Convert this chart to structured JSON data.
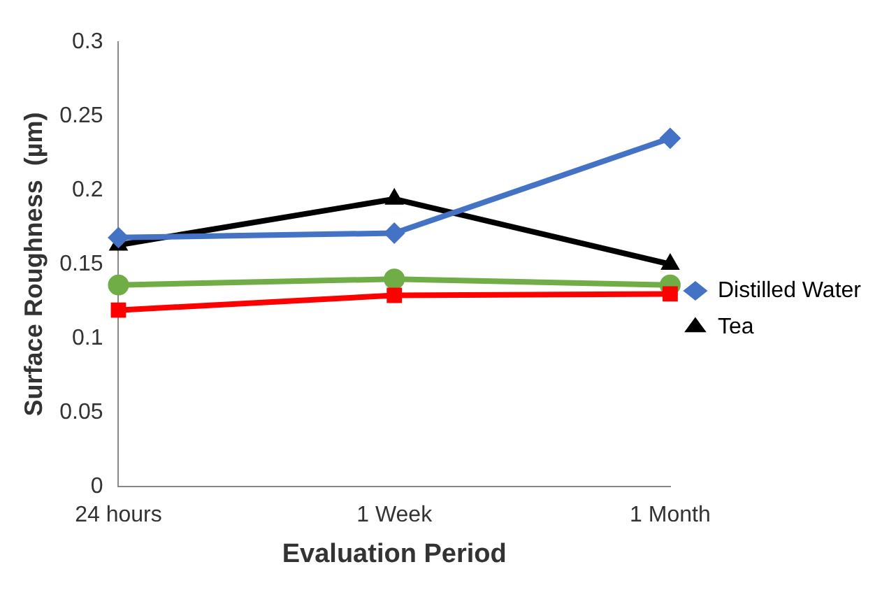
{
  "chart_data": {
    "type": "line",
    "xlabel": "Evaluation Period",
    "ylabel": "Surface Roughness  (µm)",
    "categories": [
      "24 hours",
      "1 Week",
      "1 Month"
    ],
    "series": [
      {
        "name": "Distilled Water",
        "color": "#4472c4",
        "marker": "diamond",
        "values": [
          0.168,
          0.171,
          0.235
        ]
      },
      {
        "color": "#ff0000",
        "marker": "square",
        "values": [
          0.119,
          0.129,
          0.13
        ]
      },
      {
        "name": "Tea",
        "color": "#000000",
        "marker": "triangle",
        "values": [
          0.163,
          0.194,
          0.15
        ]
      },
      {
        "color": "#70ad47",
        "marker": "circle",
        "values": [
          0.136,
          0.14,
          0.136
        ]
      }
    ],
    "ylim": [
      0,
      0.3
    ],
    "yticks": [
      0,
      0.05,
      0.1,
      0.15,
      0.2,
      0.25,
      0.3
    ],
    "grid": false,
    "legend": "right"
  }
}
